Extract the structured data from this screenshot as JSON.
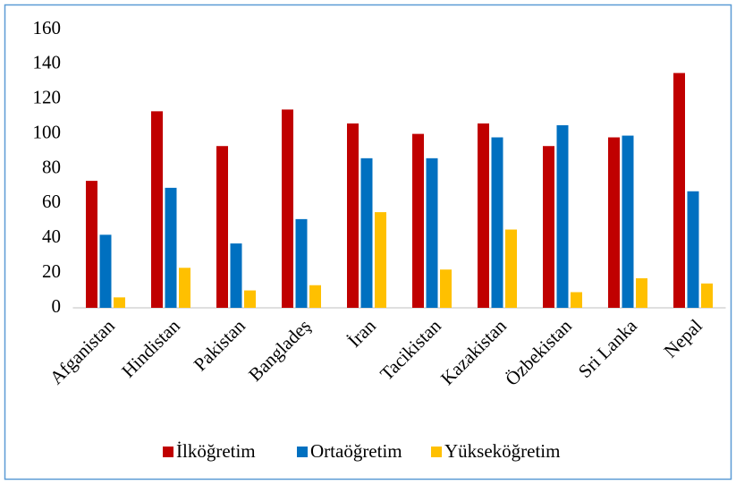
{
  "chart_data": {
    "type": "bar",
    "categories": [
      "Afganistan",
      "Hindistan",
      "Pakistan",
      "Bangladeş",
      "İran",
      "Tacikistan",
      "Kazakistan",
      "Özbekistan",
      "Sri Lanka",
      "Nepal"
    ],
    "series": [
      {
        "name": "İlköğretim",
        "color": "#c00000",
        "values": [
          73,
          113,
          93,
          114,
          106,
          100,
          106,
          93,
          98,
          135
        ]
      },
      {
        "name": "Ortaöğretim",
        "color": "#0070c0",
        "values": [
          42,
          69,
          37,
          51,
          86,
          86,
          98,
          105,
          99,
          67
        ]
      },
      {
        "name": "Yükseköğretim",
        "color": "#ffc000",
        "values": [
          6,
          23,
          10,
          13,
          55,
          22,
          45,
          9,
          17,
          14
        ]
      }
    ],
    "ylim": [
      0,
      160
    ],
    "yticks": [
      0,
      20,
      40,
      60,
      80,
      100,
      120,
      140,
      160
    ],
    "grid": false,
    "legend": "bottom"
  }
}
